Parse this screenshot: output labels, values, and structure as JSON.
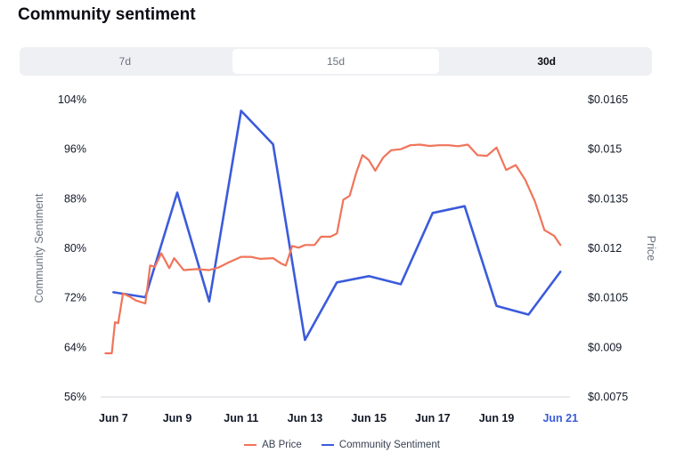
{
  "title": "Community sentiment",
  "tabs": [
    {
      "label": "7d"
    },
    {
      "label": "15d"
    },
    {
      "label": "30d"
    }
  ],
  "colors": {
    "price": "#f0745a",
    "sentiment": "#3b5bdb",
    "highlight_tick": "#3b5bdb"
  },
  "chart_data": {
    "type": "line",
    "ylabel_left": "Community Sentiment",
    "ylabel_right": "Price",
    "left_ticks": [
      "104%",
      "96%",
      "88%",
      "80%",
      "72%",
      "64%",
      "56%"
    ],
    "right_ticks": [
      "$0.0165",
      "$0.015",
      "$0.0135",
      "$0.012",
      "$0.0105",
      "$0.009",
      "$0.0075"
    ],
    "x_ticks": [
      "Jun 7",
      "Jun 9",
      "Jun 11",
      "Jun 13",
      "Jun 15",
      "Jun 17",
      "Jun 19",
      "Jun 21"
    ],
    "ylim_left": [
      56,
      104
    ],
    "ylim_right": [
      0.0075,
      0.0165
    ],
    "xlim_days": [
      6.6,
      21.3
    ],
    "series": [
      {
        "name": "Community Sentiment",
        "axis": "left",
        "x": [
          "Jun 7",
          "Jun 8",
          "Jun 9",
          "Jun 10",
          "Jun 11",
          "Jun 12",
          "Jun 13",
          "Jun 14",
          "Jun 15",
          "Jun 16",
          "Jun 17",
          "Jun 18",
          "Jun 19",
          "Jun 20",
          "Jun 21"
        ],
        "values": [
          72.9,
          72.1,
          89.0,
          71.4,
          102.2,
          96.8,
          65.2,
          74.5,
          75.5,
          74.2,
          85.7,
          86.8,
          70.7,
          69.3,
          76.2
        ]
      },
      {
        "name": "AB Price",
        "axis": "right",
        "x": [
          "Jun 6.75",
          "Jun 6.95",
          "Jun 7.05",
          "Jun 7.15",
          "Jun 7.3",
          "Jun 7.5",
          "Jun 7.7",
          "Jun 8.0",
          "Jun 8.15",
          "Jun 8.3",
          "Jun 8.5",
          "Jun 8.75",
          "Jun 8.9",
          "Jun 9.2",
          "Jun 9.6",
          "Jun 10.0",
          "Jun 10.3",
          "Jun 10.6",
          "Jun 11.0",
          "Jun 11.3",
          "Jun 11.6",
          "Jun 12.0",
          "Jun 12.25",
          "Jun 12.4",
          "Jun 12.6",
          "Jun 12.8",
          "Jun 13.0",
          "Jun 13.3",
          "Jun 13.5",
          "Jun 13.8",
          "Jun 14.0",
          "Jun 14.2",
          "Jun 14.4",
          "Jun 14.6",
          "Jun 14.8",
          "Jun 15.0",
          "Jun 15.2",
          "Jun 15.45",
          "Jun 15.7",
          "Jun 16.0",
          "Jun 16.3",
          "Jun 16.6",
          "Jun 16.9",
          "Jun 17.2",
          "Jun 17.5",
          "Jun 17.8",
          "Jun 18.1",
          "Jun 18.4",
          "Jun 18.7",
          "Jun 19.0",
          "Jun 19.3",
          "Jun 19.6",
          "Jun 19.9",
          "Jun 20.2",
          "Jun 20.5",
          "Jun 20.8",
          "Jun 21.0"
        ],
        "values": [
          0.00882,
          0.00882,
          0.00976,
          0.00973,
          0.01063,
          0.01054,
          0.01042,
          0.01033,
          0.01148,
          0.01144,
          0.01185,
          0.0114,
          0.0117,
          0.01134,
          0.01137,
          0.01134,
          0.01142,
          0.01157,
          0.01174,
          0.01174,
          0.01168,
          0.0117,
          0.01154,
          0.01148,
          0.01207,
          0.01202,
          0.0121,
          0.0121,
          0.01235,
          0.01235,
          0.01245,
          0.01347,
          0.01359,
          0.01427,
          0.01482,
          0.01467,
          0.01435,
          0.01475,
          0.01497,
          0.015,
          0.01512,
          0.01514,
          0.0151,
          0.01512,
          0.01512,
          0.01509,
          0.01514,
          0.01482,
          0.0148,
          0.01505,
          0.01437,
          0.01452,
          0.01407,
          0.01342,
          0.01255,
          0.01238,
          0.0121
        ]
      }
    ],
    "grid": false,
    "legend_position": "bottom-center"
  },
  "legend": [
    {
      "label": "AB Price"
    },
    {
      "label": "Community Sentiment"
    }
  ]
}
